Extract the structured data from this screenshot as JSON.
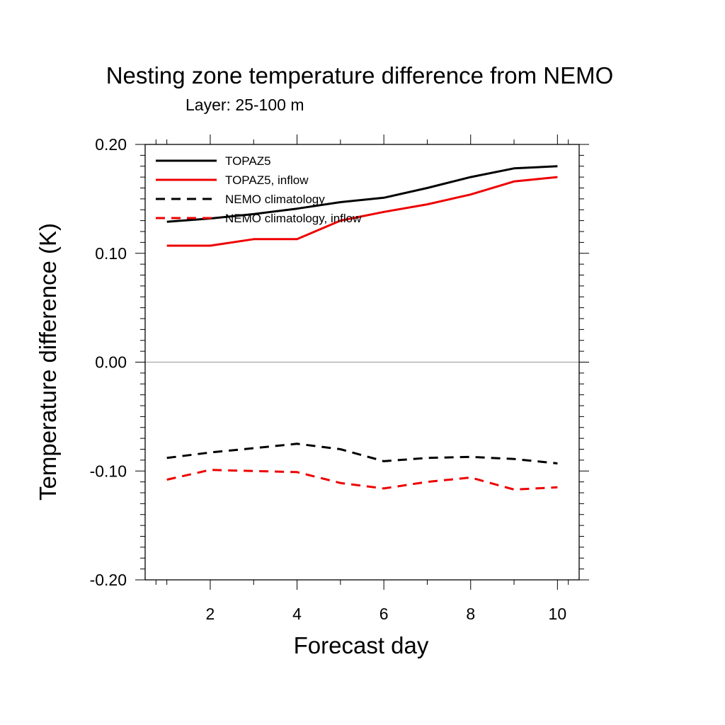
{
  "chart_data": {
    "type": "line",
    "title": "Nesting zone temperature difference from NEMO",
    "subtitle": "Layer: 25-100 m",
    "xlabel": "Forecast day",
    "ylabel": "Temperature difference (K)",
    "xlim": [
      0.5,
      10.5
    ],
    "ylim": [
      -0.2,
      0.2
    ],
    "x_ticks": [
      2,
      4,
      6,
      8,
      10
    ],
    "x_tick_labels": [
      "2",
      "4",
      "6",
      "8",
      "10"
    ],
    "y_ticks": [
      -0.2,
      -0.1,
      0.0,
      0.1,
      0.2
    ],
    "y_tick_labels": [
      "-0.20",
      "-0.10",
      "0.00",
      "0.10",
      "0.20"
    ],
    "zero_line": true,
    "grid": false,
    "legend_position": "top-left",
    "x": [
      1,
      2,
      3,
      4,
      5,
      6,
      7,
      8,
      9,
      10
    ],
    "series": [
      {
        "name": "TOPAZ5",
        "color": "#000000",
        "dashed": false,
        "values": [
          0.129,
          0.132,
          0.136,
          0.141,
          0.147,
          0.151,
          0.16,
          0.17,
          0.178,
          0.18
        ]
      },
      {
        "name": "TOPAZ5, inflow",
        "color": "#ee0000",
        "dashed": false,
        "values": [
          0.107,
          0.107,
          0.113,
          0.113,
          0.13,
          0.138,
          0.145,
          0.154,
          0.166,
          0.17
        ]
      },
      {
        "name": "NEMO climatology",
        "color": "#000000",
        "dashed": true,
        "values": [
          -0.088,
          -0.083,
          -0.079,
          -0.075,
          -0.08,
          -0.091,
          -0.088,
          -0.087,
          -0.089,
          -0.093
        ]
      },
      {
        "name": "NEMO climatology, inflow",
        "color": "#ee0000",
        "dashed": true,
        "values": [
          -0.108,
          -0.099,
          -0.1,
          -0.101,
          -0.111,
          -0.116,
          -0.11,
          -0.106,
          -0.117,
          -0.115
        ]
      }
    ]
  }
}
